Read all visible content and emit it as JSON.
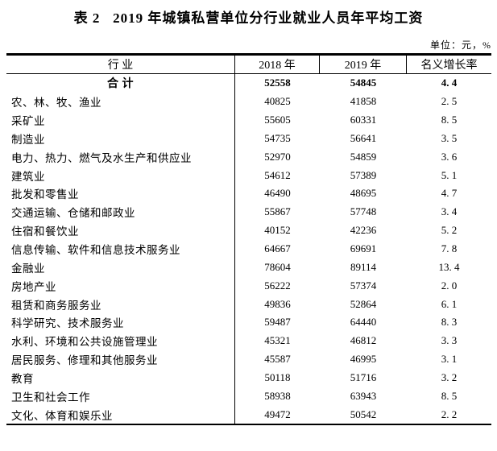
{
  "page": {
    "title": "表 2   2019 年城镇私营单位分行业就业人员年平均工资",
    "unit_note": "单位：元，%"
  },
  "table": {
    "columns": [
      "行  业",
      "2018 年",
      "2019 年",
      "名义增长率"
    ],
    "total_row": {
      "industry": "合 计",
      "y2018": "52558",
      "y2019": "54845",
      "growth": "4. 4"
    },
    "rows": [
      {
        "industry": "农、林、牧、渔业",
        "y2018": "40825",
        "y2019": "41858",
        "growth": "2. 5"
      },
      {
        "industry": "采矿业",
        "y2018": "55605",
        "y2019": "60331",
        "growth": "8. 5"
      },
      {
        "industry": "制造业",
        "y2018": "54735",
        "y2019": "56641",
        "growth": "3. 5"
      },
      {
        "industry": "电力、热力、燃气及水生产和供应业",
        "y2018": "52970",
        "y2019": "54859",
        "growth": "3. 6"
      },
      {
        "industry": "建筑业",
        "y2018": "54612",
        "y2019": "57389",
        "growth": "5. 1"
      },
      {
        "industry": "批发和零售业",
        "y2018": "46490",
        "y2019": "48695",
        "growth": "4. 7"
      },
      {
        "industry": "交通运输、仓储和邮政业",
        "y2018": "55867",
        "y2019": "57748",
        "growth": "3. 4"
      },
      {
        "industry": "住宿和餐饮业",
        "y2018": "40152",
        "y2019": "42236",
        "growth": "5. 2"
      },
      {
        "industry": "信息传输、软件和信息技术服务业",
        "y2018": "64667",
        "y2019": "69691",
        "growth": "7. 8"
      },
      {
        "industry": "金融业",
        "y2018": "78604",
        "y2019": "89114",
        "growth": "13. 4"
      },
      {
        "industry": "房地产业",
        "y2018": "56222",
        "y2019": "57374",
        "growth": "2. 0"
      },
      {
        "industry": "租赁和商务服务业",
        "y2018": "49836",
        "y2019": "52864",
        "growth": "6. 1"
      },
      {
        "industry": "科学研究、技术服务业",
        "y2018": "59487",
        "y2019": "64440",
        "growth": "8. 3"
      },
      {
        "industry": "水利、环境和公共设施管理业",
        "y2018": "45321",
        "y2019": "46812",
        "growth": "3. 3"
      },
      {
        "industry": "居民服务、修理和其他服务业",
        "y2018": "45587",
        "y2019": "46995",
        "growth": "3. 1"
      },
      {
        "industry": "教育",
        "y2018": "50118",
        "y2019": "51716",
        "growth": "3. 2"
      },
      {
        "industry": "卫生和社会工作",
        "y2018": "58938",
        "y2019": "63943",
        "growth": "8. 5"
      },
      {
        "industry": "文化、体育和娱乐业",
        "y2018": "49472",
        "y2019": "50542",
        "growth": "2. 2"
      }
    ]
  }
}
